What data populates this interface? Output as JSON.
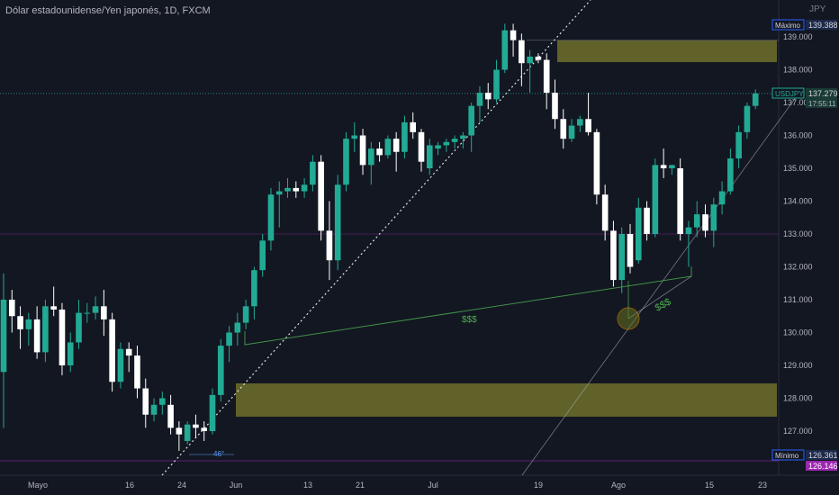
{
  "header": {
    "title": "Dólar estadounidense/Yen japonés, 1D, FXCM",
    "currency": "JPY"
  },
  "colors": {
    "background": "#131722",
    "up": "#22ab94",
    "down": "#ffffff",
    "zone": "#8a8a2e",
    "trend": "#4caf50",
    "grid": "#2a2e39"
  },
  "chart_data": {
    "type": "candlestick",
    "symbol": "USDJPY",
    "ylim": [
      126.0,
      139.6
    ],
    "y_ticks": [
      "139.000",
      "138.000",
      "137.000",
      "136.000",
      "135.000",
      "134.000",
      "133.000",
      "132.000",
      "131.000",
      "130.000",
      "129.000",
      "128.000",
      "127.000"
    ],
    "x_ticks": [
      "Mayo",
      "16",
      "24",
      "Jun",
      "13",
      "21",
      "Jul",
      "19",
      "Ago",
      "15",
      "23"
    ],
    "badges": [
      {
        "label": "Máximo",
        "value": "139.388"
      },
      {
        "label": "USDJPY",
        "value": "137.279",
        "sub": "17:55:11"
      },
      {
        "label": "Mínimo",
        "value": "126.361"
      },
      {
        "label": "",
        "value": "126.146"
      }
    ],
    "annotations": [
      "$$$",
      "$$$",
      "46°"
    ],
    "candles": [
      [
        128.8,
        131.8,
        127.1,
        131.0
      ],
      [
        131.0,
        131.3,
        130.0,
        130.5
      ],
      [
        130.5,
        130.8,
        129.5,
        130.1
      ],
      [
        130.1,
        130.6,
        129.6,
        130.4
      ],
      [
        130.4,
        130.8,
        129.2,
        129.4
      ],
      [
        129.4,
        131.0,
        129.1,
        130.8
      ],
      [
        130.8,
        131.4,
        130.5,
        130.7
      ],
      [
        130.7,
        130.9,
        128.7,
        129.0
      ],
      [
        129.0,
        130.0,
        128.8,
        129.7
      ],
      [
        129.7,
        131.0,
        129.5,
        130.6
      ],
      [
        130.6,
        130.9,
        130.3,
        130.6
      ],
      [
        130.6,
        131.1,
        130.4,
        130.8
      ],
      [
        130.8,
        131.3,
        129.9,
        130.4
      ],
      [
        130.4,
        130.6,
        128.2,
        128.5
      ],
      [
        128.5,
        129.7,
        128.3,
        129.5
      ],
      [
        129.5,
        129.7,
        128.8,
        129.3
      ],
      [
        129.3,
        129.6,
        128.0,
        128.3
      ],
      [
        128.3,
        128.6,
        127.1,
        127.5
      ],
      [
        127.5,
        128.0,
        127.3,
        127.8
      ],
      [
        127.8,
        128.2,
        127.5,
        128.0
      ],
      [
        127.8,
        128.1,
        126.9,
        127.1
      ],
      [
        127.1,
        127.3,
        126.4,
        126.9
      ],
      [
        126.7,
        127.3,
        126.6,
        127.2
      ],
      [
        127.2,
        127.5,
        126.8,
        127.1
      ],
      [
        127.1,
        127.3,
        126.7,
        127.0
      ],
      [
        127.0,
        128.3,
        126.9,
        128.1
      ],
      [
        128.1,
        129.8,
        127.9,
        129.6
      ],
      [
        129.6,
        130.2,
        129.1,
        130.0
      ],
      [
        130.0,
        130.6,
        129.6,
        130.3
      ],
      [
        130.3,
        131.0,
        130.1,
        130.8
      ],
      [
        130.8,
        132.0,
        130.4,
        131.9
      ],
      [
        131.9,
        133.0,
        131.7,
        132.8
      ],
      [
        132.8,
        134.4,
        132.5,
        134.2
      ],
      [
        134.2,
        134.6,
        133.2,
        134.3
      ],
      [
        134.3,
        134.7,
        134.1,
        134.4
      ],
      [
        134.4,
        134.6,
        134.1,
        134.3
      ],
      [
        134.3,
        134.7,
        134.1,
        134.5
      ],
      [
        134.5,
        135.4,
        134.3,
        135.2
      ],
      [
        135.2,
        135.4,
        132.8,
        133.1
      ],
      [
        133.1,
        134.0,
        131.6,
        132.2
      ],
      [
        132.2,
        134.8,
        131.9,
        134.5
      ],
      [
        134.5,
        136.1,
        134.3,
        135.9
      ],
      [
        135.9,
        136.4,
        135.5,
        136.0
      ],
      [
        136.0,
        136.2,
        134.8,
        135.1
      ],
      [
        135.1,
        135.8,
        134.5,
        135.6
      ],
      [
        135.6,
        135.8,
        135.2,
        135.4
      ],
      [
        135.4,
        136.0,
        135.3,
        135.9
      ],
      [
        135.9,
        136.1,
        134.9,
        135.5
      ],
      [
        135.5,
        136.6,
        135.3,
        136.4
      ],
      [
        136.4,
        136.7,
        135.9,
        136.1
      ],
      [
        136.1,
        136.2,
        134.9,
        135.2
      ],
      [
        135.0,
        135.9,
        134.8,
        135.7
      ],
      [
        135.6,
        135.8,
        135.4,
        135.7
      ],
      [
        135.7,
        135.9,
        135.5,
        135.8
      ],
      [
        135.8,
        136.0,
        135.6,
        135.9
      ],
      [
        135.9,
        136.1,
        135.6,
        136.0
      ],
      [
        136.0,
        137.0,
        135.5,
        136.9
      ],
      [
        136.9,
        137.5,
        136.4,
        137.3
      ],
      [
        137.3,
        137.6,
        136.8,
        137.1
      ],
      [
        137.1,
        138.3,
        137.0,
        138.0
      ],
      [
        138.0,
        139.4,
        137.9,
        139.2
      ],
      [
        139.2,
        139.4,
        138.4,
        138.9
      ],
      [
        138.9,
        139.1,
        137.5,
        138.2
      ],
      [
        138.2,
        138.6,
        137.3,
        138.4
      ],
      [
        138.4,
        138.5,
        138.2,
        138.3
      ],
      [
        138.3,
        138.5,
        136.8,
        137.3
      ],
      [
        137.3,
        137.7,
        136.2,
        136.5
      ],
      [
        136.5,
        136.8,
        135.6,
        135.9
      ],
      [
        135.9,
        136.5,
        135.8,
        136.3
      ],
      [
        136.3,
        136.6,
        136.1,
        136.5
      ],
      [
        136.5,
        137.3,
        136.0,
        136.1
      ],
      [
        136.1,
        136.2,
        133.9,
        134.2
      ],
      [
        134.2,
        134.5,
        132.8,
        133.1
      ],
      [
        133.1,
        133.4,
        131.4,
        131.6
      ],
      [
        131.6,
        133.2,
        131.2,
        133.0
      ],
      [
        133.0,
        133.3,
        131.8,
        132.0
      ],
      [
        132.2,
        134.1,
        132.1,
        133.8
      ],
      [
        133.8,
        134.0,
        132.8,
        133.0
      ],
      [
        133.0,
        135.3,
        132.9,
        135.1
      ],
      [
        135.1,
        135.6,
        134.7,
        135.0
      ],
      [
        135.0,
        135.1,
        134.8,
        135.1
      ],
      [
        135.0,
        135.3,
        132.8,
        133.0
      ],
      [
        133.0,
        133.4,
        132.0,
        133.2
      ],
      [
        133.2,
        134.0,
        132.9,
        133.6
      ],
      [
        133.6,
        133.9,
        132.9,
        133.1
      ],
      [
        133.1,
        134.1,
        132.6,
        133.9
      ],
      [
        133.9,
        134.6,
        133.6,
        134.3
      ],
      [
        134.3,
        135.6,
        134.2,
        135.3
      ],
      [
        135.3,
        136.3,
        135.0,
        136.1
      ],
      [
        136.1,
        137.0,
        135.9,
        136.9
      ],
      [
        136.9,
        137.4,
        136.8,
        137.279
      ]
    ]
  }
}
